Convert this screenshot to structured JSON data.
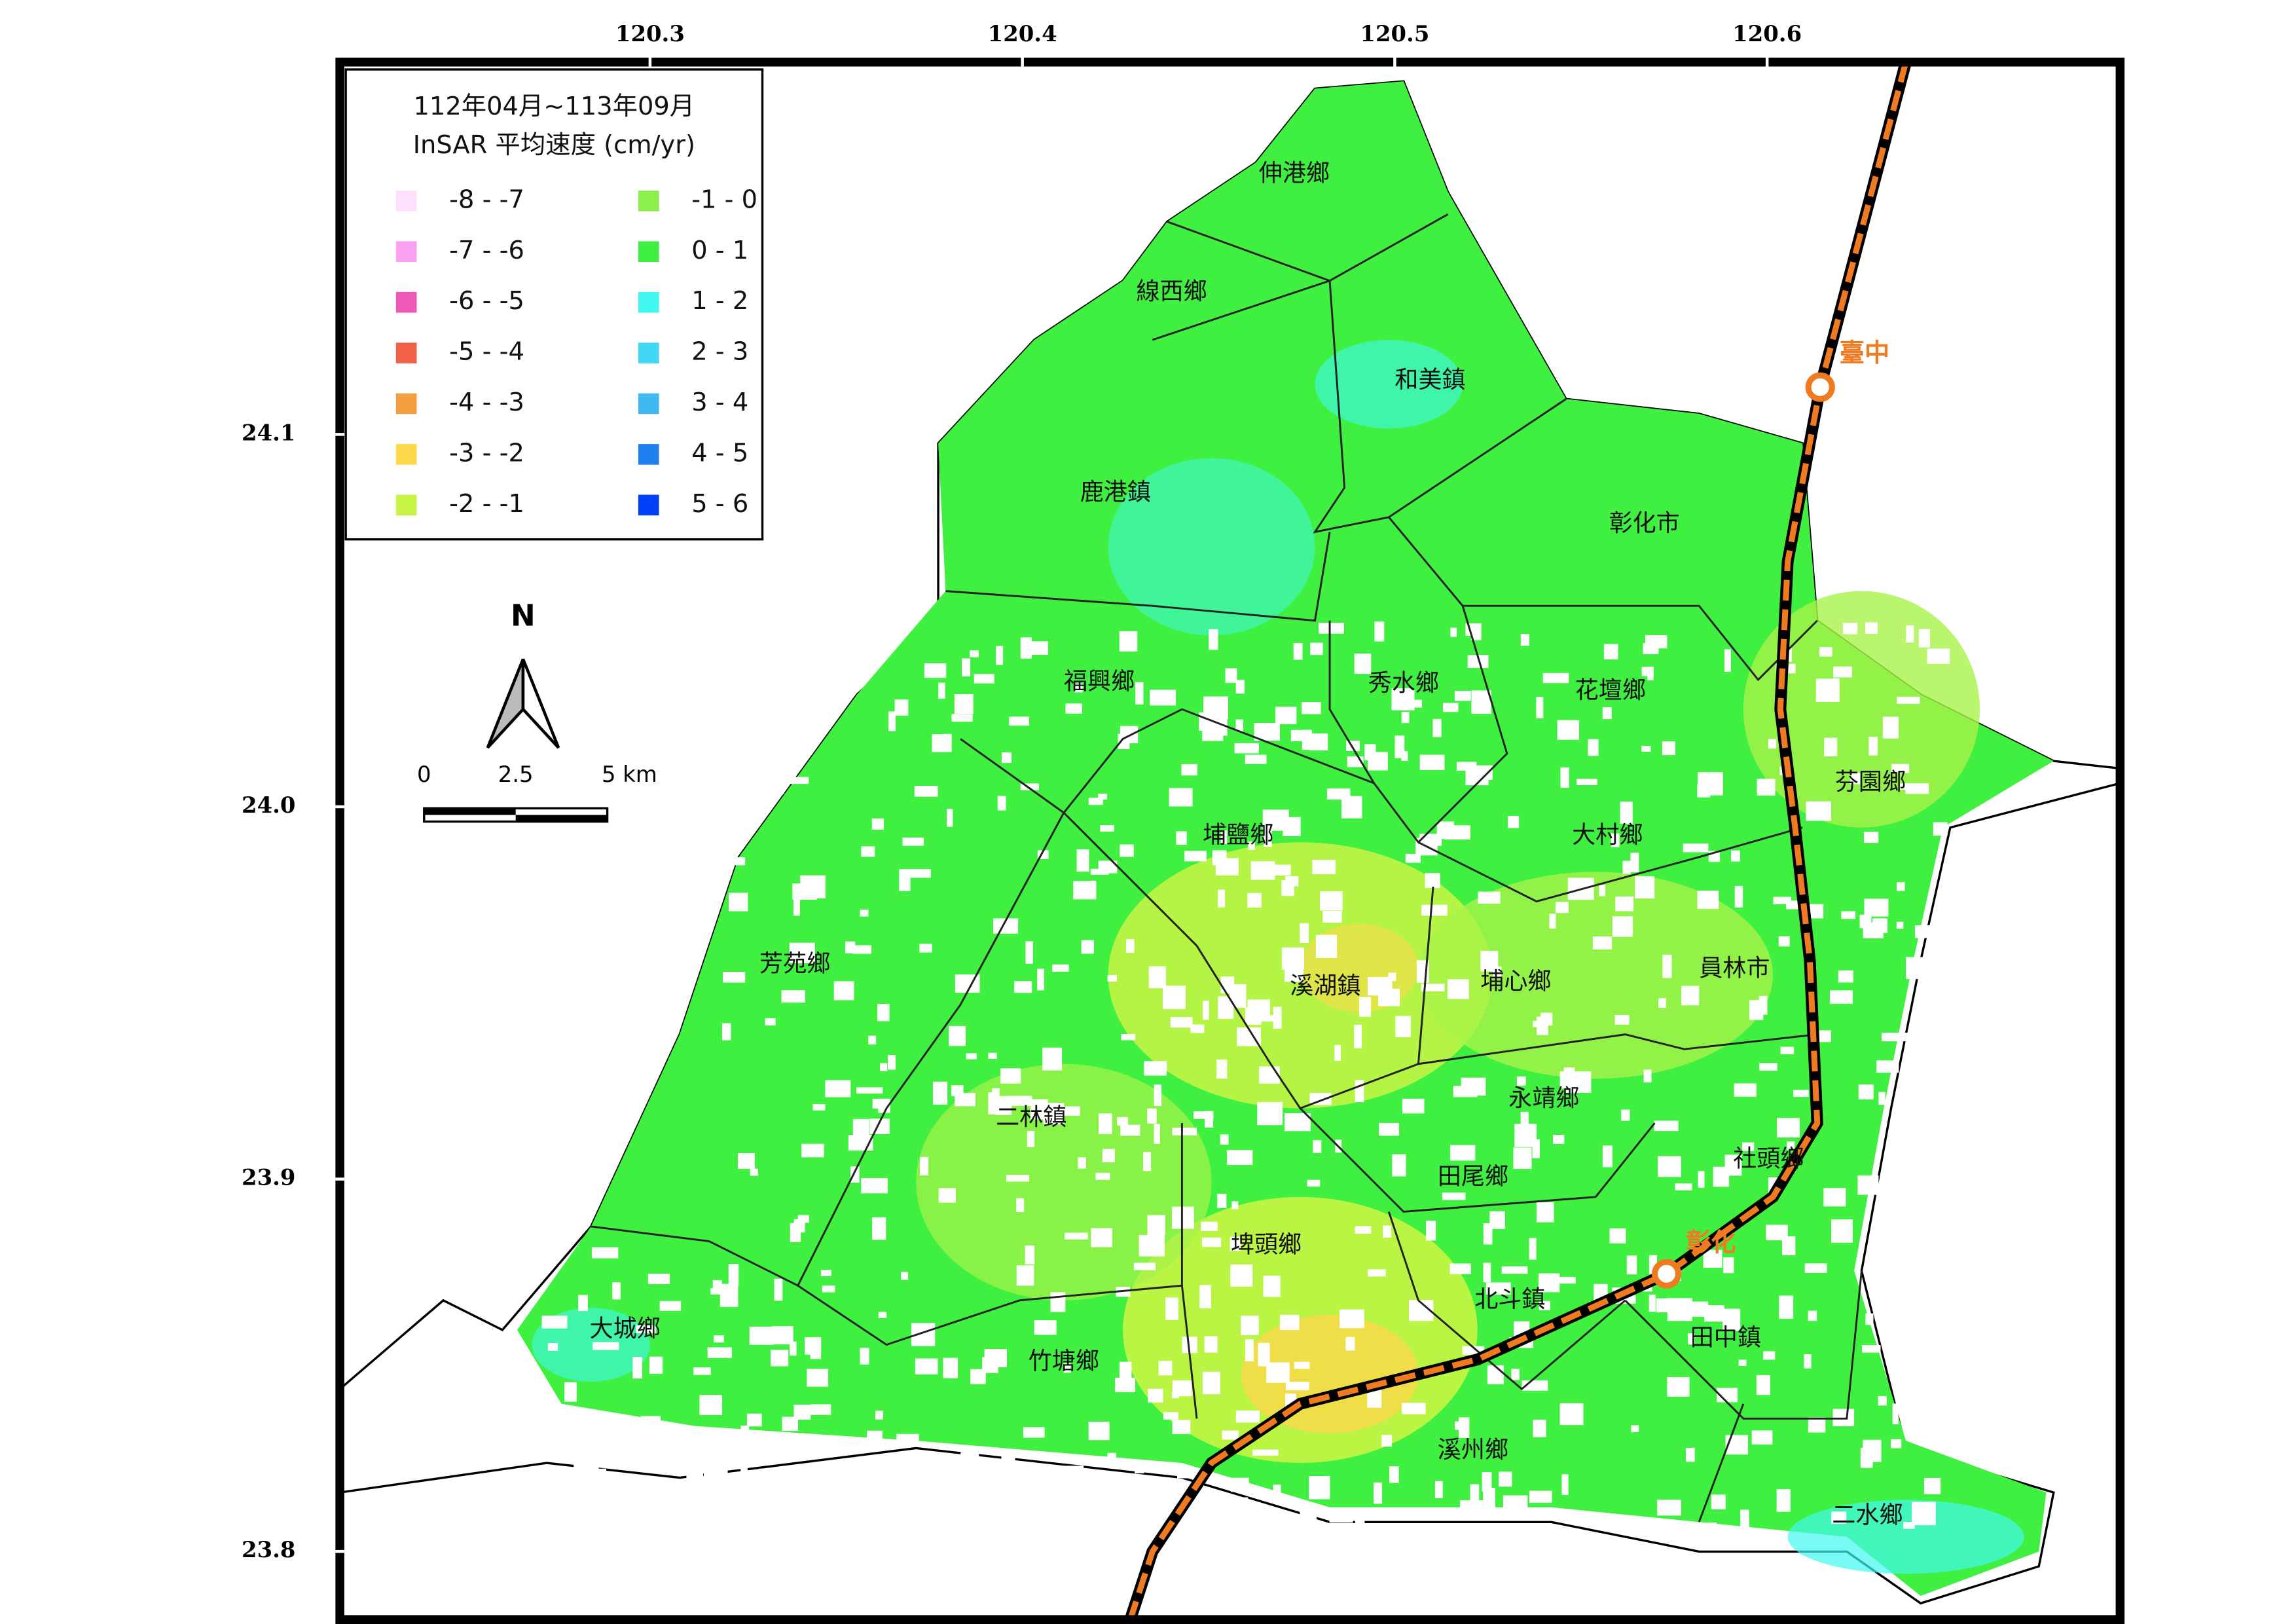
{
  "legend": {
    "title": [
      "112年04月~113年09月",
      "InSAR 平均速度 (cm/yr)"
    ],
    "items": [
      {
        "label": "-8 - -7",
        "color": "#fde0fb"
      },
      {
        "label": "-7 - -6",
        "color": "#f9a0f3"
      },
      {
        "label": "-6 - -5",
        "color": "#f058b8"
      },
      {
        "label": "-5 - -4",
        "color": "#f26048"
      },
      {
        "label": "-4 - -3",
        "color": "#f5a040"
      },
      {
        "label": "-3 - -2",
        "color": "#fcd84a"
      },
      {
        "label": "-2 - -1",
        "color": "#c8f545"
      },
      {
        "label": "-1 - 0",
        "color": "#8cf04a"
      },
      {
        "label": "0 - 1",
        "color": "#40f040"
      },
      {
        "label": "1 - 2",
        "color": "#40f8f0"
      },
      {
        "label": "2 - 3",
        "color": "#40d8f5"
      },
      {
        "label": "3 - 4",
        "color": "#40b8f0"
      },
      {
        "label": "4 - 5",
        "color": "#2080f0"
      },
      {
        "label": "5 - 6",
        "color": "#0040f8"
      }
    ]
  },
  "axes": {
    "xlim": [
      120.2167,
      120.6948
    ],
    "ylim": [
      23.7817,
      24.2
    ],
    "xticks": [
      120.3,
      120.4,
      120.5,
      120.6
    ],
    "yticks": [
      24.1,
      {
        "value": 24,
        "label": "24.0"
      },
      23.9,
      23.8
    ]
  },
  "north": "N",
  "scale_bar": {
    "labels": [
      "0",
      "2.5",
      "5 km"
    ]
  },
  "townships": [
    "伸港鄉",
    "線西鄉",
    "和美鎮",
    "鹿港鎮",
    "彰化市",
    "福興鄉",
    "秀水鄉",
    "花壇鄉",
    "芬園鄉",
    "埔鹽鄉",
    "大村鄉",
    "芳苑鄉",
    "溪湖鎮",
    "埔心鄉",
    "員林市",
    "永靖鄉",
    "二林鎮",
    "社頭鄉",
    "田尾鄉",
    "埤頭鄉",
    "北斗鎮",
    "田中鎮",
    "大城鄉",
    "竹塘鄉",
    "溪州鄉",
    "二水鄉"
  ],
  "stations": [
    "臺中",
    "彰化"
  ]
}
